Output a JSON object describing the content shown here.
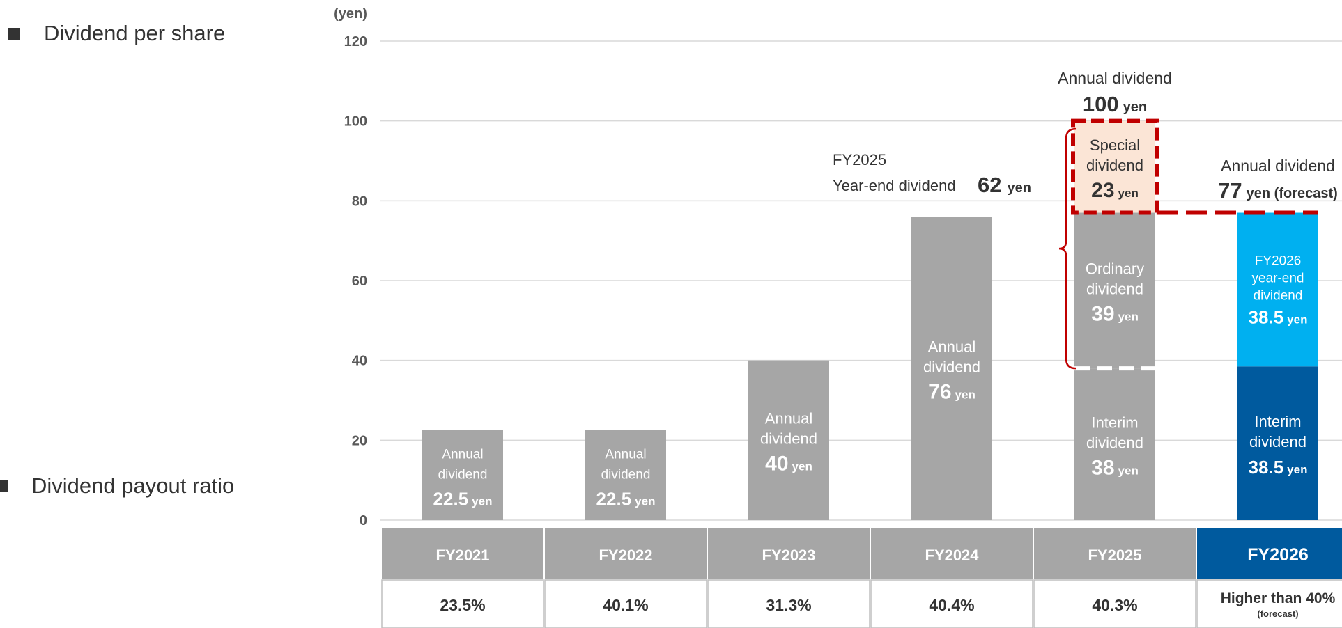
{
  "sections": {
    "dividend_per_share": "Dividend per share",
    "dividend_payout_ratio": "Dividend payout ratio"
  },
  "colors": {
    "grey_bar": "#a6a6a6",
    "special": "#fbe5d6",
    "fy2026_year_end": "#00b0f0",
    "fy2026_interim": "#005a9e",
    "highlight_border": "#c00000",
    "header_grey": "#a6a6a6",
    "header_fy2026": "#005a9e"
  },
  "chart_data": {
    "type": "bar",
    "stacked": true,
    "ylabel": "(yen)",
    "ylim": [
      0,
      120
    ],
    "yticks": [
      0,
      20,
      40,
      60,
      80,
      100,
      120
    ],
    "grid": true,
    "categories": [
      "FY2021",
      "FY2022",
      "FY2023",
      "FY2024",
      "FY2025",
      "FY2026"
    ],
    "bars": [
      {
        "category": "FY2021",
        "segments": [
          {
            "value": 22.5,
            "color": "grey",
            "lines": [
              "Annual",
              "dividend"
            ],
            "value_label": "22.5",
            "unit": "yen"
          }
        ]
      },
      {
        "category": "FY2022",
        "segments": [
          {
            "value": 22.5,
            "color": "grey",
            "lines": [
              "Annual",
              "dividend"
            ],
            "value_label": "22.5",
            "unit": "yen"
          }
        ]
      },
      {
        "category": "FY2023",
        "segments": [
          {
            "value": 40,
            "color": "grey",
            "lines": [
              "Annual",
              "dividend"
            ],
            "value_label": "40",
            "unit": "yen"
          }
        ]
      },
      {
        "category": "FY2024",
        "segments": [
          {
            "value": 76,
            "color": "grey",
            "lines": [
              "Annual",
              "dividend"
            ],
            "value_label": "76",
            "unit": "yen"
          }
        ]
      },
      {
        "category": "FY2025",
        "segments": [
          {
            "value": 38,
            "color": "grey",
            "lines": [
              "Interim",
              "dividend"
            ],
            "value_label": "38",
            "unit": "yen"
          },
          {
            "value": 39,
            "color": "grey",
            "lines": [
              "Ordinary",
              "dividend"
            ],
            "value_label": "39",
            "unit": "yen"
          },
          {
            "value": 23,
            "color": "special",
            "lines": [
              "Special",
              "dividend"
            ],
            "value_label": "23",
            "unit": "yen"
          }
        ]
      },
      {
        "category": "FY2026",
        "segments": [
          {
            "value": 38.5,
            "color": "fy2026_interim",
            "lines": [
              "Interim",
              "dividend"
            ],
            "value_label": "38.5",
            "unit": "yen"
          },
          {
            "value": 38.5,
            "color": "fy2026_year_end",
            "lines": [
              "FY2026",
              "year-end",
              "dividend"
            ],
            "value_label": "38.5",
            "unit": "yen"
          }
        ]
      }
    ],
    "annotations": {
      "fy2025_total": {
        "title": "Annual dividend",
        "value": "100",
        "unit": "yen"
      },
      "fy2025_year_end": {
        "line1": "FY2025",
        "line2": "Year-end dividend",
        "value": "62",
        "unit": "yen"
      },
      "fy2026_total": {
        "title": "Annual dividend",
        "value": "77",
        "unit": "yen (forecast)"
      }
    },
    "payout_ratio": [
      {
        "category": "FY2021",
        "value": "23.5%"
      },
      {
        "category": "FY2022",
        "value": "40.1%"
      },
      {
        "category": "FY2023",
        "value": "31.3%"
      },
      {
        "category": "FY2024",
        "value": "40.4%"
      },
      {
        "category": "FY2025",
        "value": "40.3%"
      },
      {
        "category": "FY2026",
        "value": "Higher than 40%",
        "note": "(forecast)"
      }
    ]
  }
}
